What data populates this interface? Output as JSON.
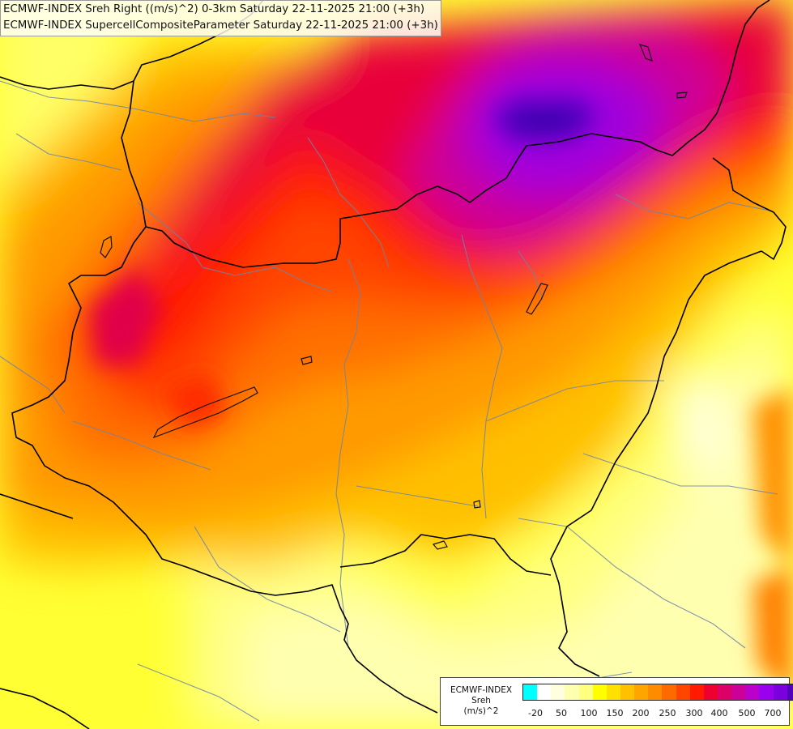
{
  "titles": {
    "line1": "ECMWF-INDEX Sreh Right ((m/s)^2) 0-3km Saturday 22-11-2025 21:00 (+3h)",
    "line2": "ECMWF-INDEX SupercellCompositeParameter Saturday 22-11-2025 21:00 (+3h)"
  },
  "legend": {
    "product": "ECMWF-INDEX",
    "variable": "Sreh",
    "unit": "(m/s)^2",
    "colors": [
      "#00ffff",
      "#ffffff",
      "#ffffe0",
      "#ffffb0",
      "#ffff80",
      "#ffff00",
      "#ffe000",
      "#ffc000",
      "#ffa500",
      "#ff8c00",
      "#ff6a00",
      "#ff4500",
      "#ff1a00",
      "#ee0030",
      "#dd0066",
      "#cc0099",
      "#bb00cc",
      "#9900ee",
      "#7a00dd",
      "#5500bb",
      "#22009a",
      "#000080"
    ],
    "tick_labels": [
      "-20",
      "50",
      "100",
      "150",
      "200",
      "250",
      "300",
      "400",
      "500",
      "700"
    ]
  }
}
